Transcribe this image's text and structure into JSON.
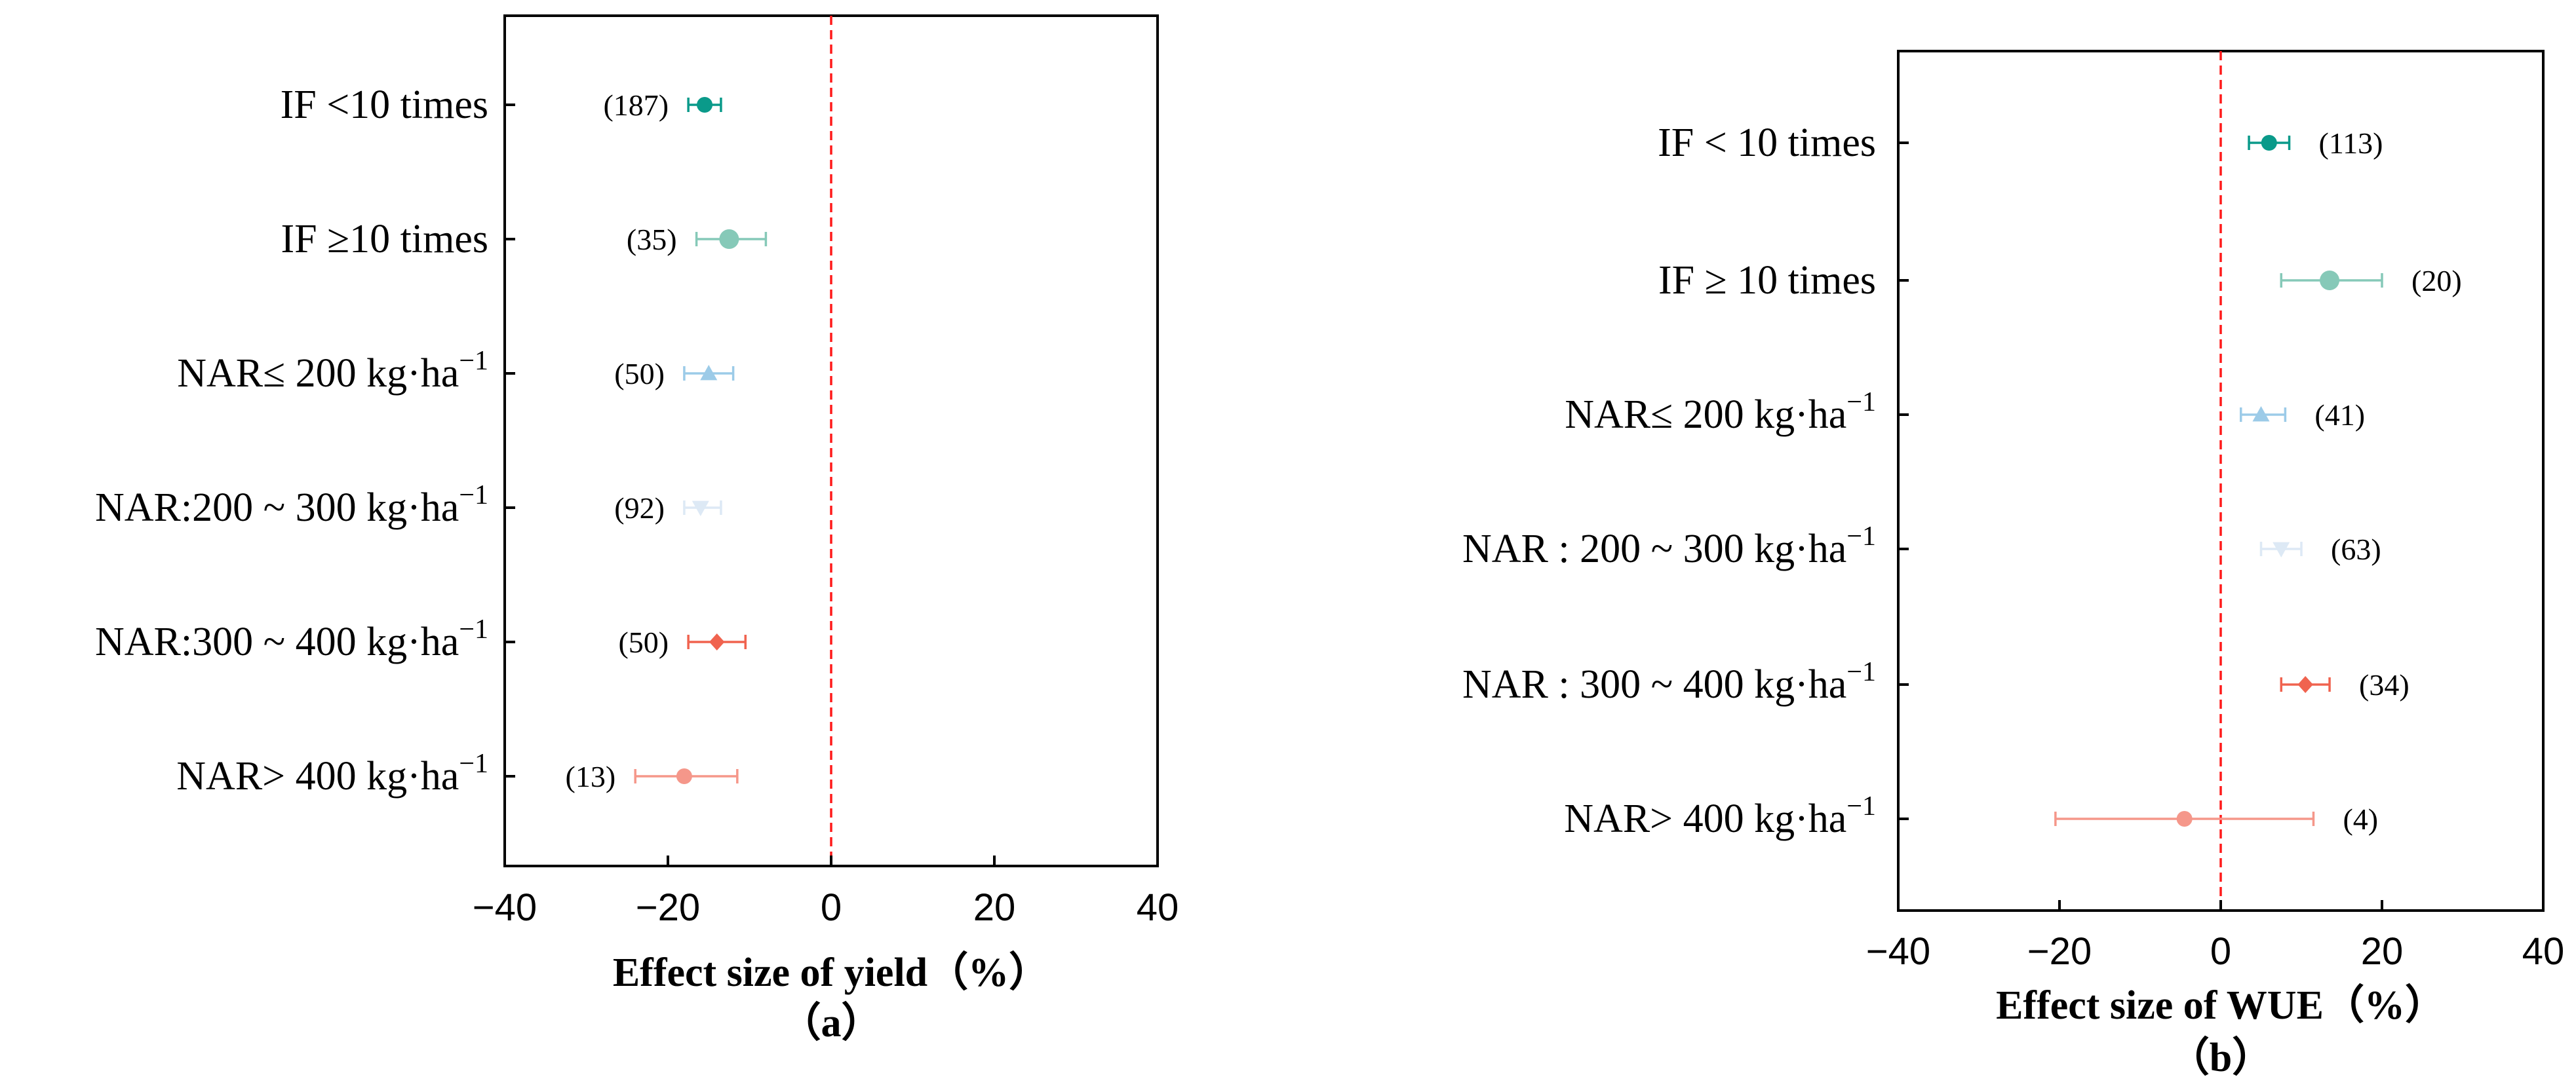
{
  "chart_data": [
    {
      "type": "forest",
      "panel_label": "（a）",
      "xlabel": "Effect size of yield（%）",
      "xlim": [
        -40,
        40
      ],
      "xticks": [
        "−40",
        "−20",
        "0",
        "20",
        "40"
      ],
      "reference_line": 0,
      "categories": [
        {
          "label": "IF  <10 times",
          "n": "(187)",
          "mean": -15.5,
          "ci": [
            -17.5,
            -13.5
          ],
          "marker": "circle",
          "color": "#0a9a8a"
        },
        {
          "label": "IF  ≥10 times",
          "n": "(35)",
          "mean": -12.5,
          "ci": [
            -16.5,
            -8.0
          ],
          "marker": "circle",
          "color": "#86c9b8"
        },
        {
          "label": "NAR≤ 200 kg·ha",
          "n": "(50)",
          "mean": -15.0,
          "ci": [
            -18.0,
            -12.0
          ],
          "marker": "triangle-up",
          "color": "#9ccbe8"
        },
        {
          "label": "NAR:200 ~ 300 kg·ha",
          "n": "(92)",
          "mean": -16.0,
          "ci": [
            -18.0,
            -13.5
          ],
          "marker": "triangle-down",
          "color": "#dde9f5"
        },
        {
          "label": "NAR:300 ~ 400 kg·ha",
          "n": "(50)",
          "mean": -14.0,
          "ci": [
            -17.5,
            -10.5
          ],
          "marker": "diamond",
          "color": "#f0634f"
        },
        {
          "label": "NAR> 400 kg·ha",
          "n": "(13)",
          "mean": -18.0,
          "ci": [
            -24.0,
            -11.5
          ],
          "marker": "circle",
          "color": "#f5978a"
        }
      ],
      "superscript": "−1"
    },
    {
      "type": "forest",
      "panel_label": "（b）",
      "xlabel": "Effect size of WUE（%）",
      "xlim": [
        -40,
        40
      ],
      "xticks": [
        "−40",
        "−20",
        "0",
        "20",
        "40"
      ],
      "reference_line": 0,
      "categories": [
        {
          "label": "IF < 10 times",
          "n": "(113)",
          "mean": 6.0,
          "ci": [
            3.5,
            8.5
          ],
          "marker": "circle",
          "color": "#0a9a8a"
        },
        {
          "label": "IF ≥ 10 times",
          "n": "(20)",
          "mean": 13.5,
          "ci": [
            7.5,
            20.0
          ],
          "marker": "circle",
          "color": "#86c9b8"
        },
        {
          "label": "NAR≤ 200 kg·ha",
          "n": "(41)",
          "mean": 5.0,
          "ci": [
            2.5,
            8.0
          ],
          "marker": "triangle-up",
          "color": "#9ccbe8"
        },
        {
          "label": "NAR : 200 ~ 300 kg·ha",
          "n": "(63)",
          "mean": 7.5,
          "ci": [
            5.0,
            10.0
          ],
          "marker": "triangle-down",
          "color": "#dde9f5"
        },
        {
          "label": "NAR : 300 ~ 400 kg·ha",
          "n": "(34)",
          "mean": 10.5,
          "ci": [
            7.5,
            13.5
          ],
          "marker": "diamond",
          "color": "#f0634f"
        },
        {
          "label": "NAR> 400 kg·ha",
          "n": "(4)",
          "mean": -4.5,
          "ci": [
            -20.5,
            11.5
          ],
          "marker": "circle",
          "color": "#f5978a"
        }
      ],
      "superscript": "−1"
    }
  ]
}
